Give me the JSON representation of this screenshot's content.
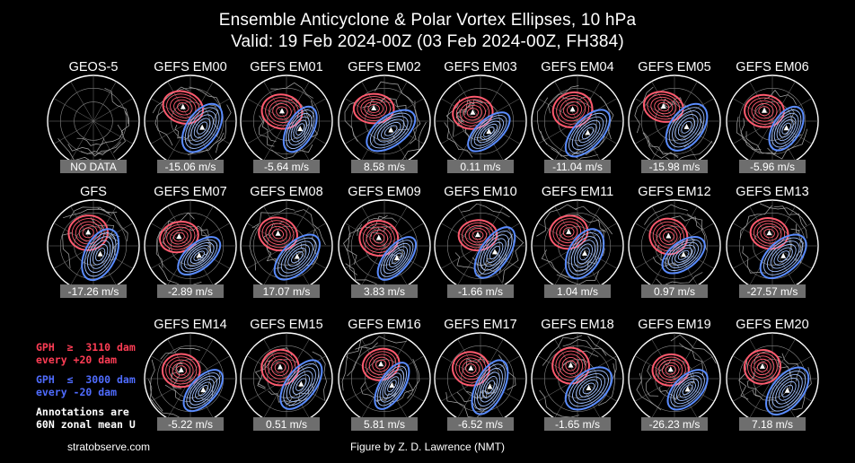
{
  "title": "Ensemble Anticyclone & Polar Vortex Ellipses, 10 hPa",
  "subtitle": "Valid: 19 Feb 2024-00Z  (03 Feb 2024-00Z, FH384)",
  "legend": {
    "red_line1": "GPH  ≥  3110 dam",
    "red_line2": "every +20 dam",
    "blue_line1": "GPH  ≤  3000 dam",
    "blue_line2": "every -20 dam",
    "note_line1": "Annotations are",
    "note_line2": "60N zonal mean U"
  },
  "footer": {
    "left": "stratobserve.com",
    "center": "Figure by Z. D. Lawrence (NMT)"
  },
  "colors": {
    "anticyclone": "#ff5a6e",
    "vortex": "#5a8cff",
    "label_box": "#6e6e6e",
    "background": "#000000"
  },
  "chart_data": {
    "type": "panel-grid",
    "panels": [
      {
        "name": "GEOS-5",
        "label": "NO DATA",
        "row": 0,
        "col": 0,
        "has_data": false
      },
      {
        "name": "GEFS EM00",
        "label": "-15.06 m/s",
        "u60": -15.06,
        "row": 0,
        "col": 1,
        "has_data": true
      },
      {
        "name": "GEFS EM01",
        "label": "-5.64 m/s",
        "u60": -5.64,
        "row": 0,
        "col": 2,
        "has_data": true
      },
      {
        "name": "GEFS EM02",
        "label": "8.58 m/s",
        "u60": 8.58,
        "row": 0,
        "col": 3,
        "has_data": true
      },
      {
        "name": "GEFS EM03",
        "label": "0.11 m/s",
        "u60": 0.11,
        "row": 0,
        "col": 4,
        "has_data": true
      },
      {
        "name": "GEFS EM04",
        "label": "-11.04 m/s",
        "u60": -11.04,
        "row": 0,
        "col": 5,
        "has_data": true
      },
      {
        "name": "GEFS EM05",
        "label": "-15.98 m/s",
        "u60": -15.98,
        "row": 0,
        "col": 6,
        "has_data": true
      },
      {
        "name": "GEFS EM06",
        "label": "-5.96 m/s",
        "u60": -5.96,
        "row": 0,
        "col": 7,
        "has_data": true
      },
      {
        "name": "GFS",
        "label": "-17.26 m/s",
        "u60": -17.26,
        "row": 1,
        "col": 0,
        "has_data": true
      },
      {
        "name": "GEFS EM07",
        "label": "-2.89 m/s",
        "u60": -2.89,
        "row": 1,
        "col": 1,
        "has_data": true
      },
      {
        "name": "GEFS EM08",
        "label": "17.07 m/s",
        "u60": 17.07,
        "row": 1,
        "col": 2,
        "has_data": true
      },
      {
        "name": "GEFS EM09",
        "label": "3.83 m/s",
        "u60": 3.83,
        "row": 1,
        "col": 3,
        "has_data": true
      },
      {
        "name": "GEFS EM10",
        "label": "-1.66 m/s",
        "u60": -1.66,
        "row": 1,
        "col": 4,
        "has_data": true
      },
      {
        "name": "GEFS EM11",
        "label": "1.04 m/s",
        "u60": 1.04,
        "row": 1,
        "col": 5,
        "has_data": true
      },
      {
        "name": "GEFS EM12",
        "label": "0.97 m/s",
        "u60": 0.97,
        "row": 1,
        "col": 6,
        "has_data": true
      },
      {
        "name": "GEFS EM13",
        "label": "-27.57 m/s",
        "u60": -27.57,
        "row": 1,
        "col": 7,
        "has_data": true
      },
      {
        "name": "GEFS EM14",
        "label": "-5.22 m/s",
        "u60": -5.22,
        "row": 2,
        "col": 1,
        "has_data": true
      },
      {
        "name": "GEFS EM15",
        "label": "0.51 m/s",
        "u60": 0.51,
        "row": 2,
        "col": 2,
        "has_data": true
      },
      {
        "name": "GEFS EM16",
        "label": "5.81 m/s",
        "u60": 5.81,
        "row": 2,
        "col": 3,
        "has_data": true
      },
      {
        "name": "GEFS EM17",
        "label": "-6.52 m/s",
        "u60": -6.52,
        "row": 2,
        "col": 4,
        "has_data": true
      },
      {
        "name": "GEFS EM18",
        "label": "-1.65 m/s",
        "u60": -1.65,
        "row": 2,
        "col": 5,
        "has_data": true
      },
      {
        "name": "GEFS EM19",
        "label": "-26.23 m/s",
        "u60": -26.23,
        "row": 2,
        "col": 6,
        "has_data": true
      },
      {
        "name": "GEFS EM20",
        "label": "7.18 m/s",
        "u60": 7.18,
        "row": 2,
        "col": 7,
        "has_data": true
      }
    ]
  }
}
